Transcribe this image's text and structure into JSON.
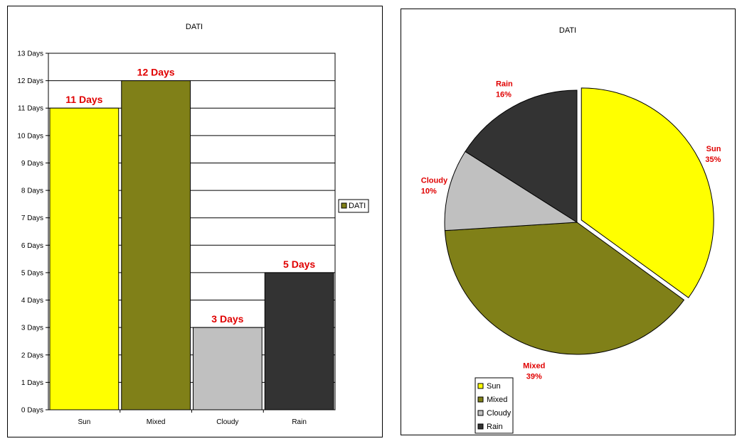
{
  "chart_data": [
    {
      "type": "bar",
      "title": "DATI",
      "categories": [
        "Sun",
        "Mixed",
        "Cloudy",
        "Rain"
      ],
      "series": [
        {
          "name": "DATI",
          "values": [
            11,
            12,
            3,
            5
          ]
        }
      ],
      "colors": [
        "#ffff00",
        "#808018",
        "#c0c0c0",
        "#333333"
      ],
      "legend_color": "#808018",
      "data_labels": [
        "11 Days",
        "12 Days",
        "3 Days",
        "5 Days"
      ],
      "yticks": [
        "0 Days",
        "1 Days",
        "2 Days",
        "3 Days",
        "4 Days",
        "5 Days",
        "6 Days",
        "7 Days",
        "8 Days",
        "9 Days",
        "10 Days",
        "11 Days",
        "12 Days",
        "13 Days"
      ],
      "ylim": [
        0,
        13
      ],
      "grid": true,
      "legend_position": "right"
    },
    {
      "type": "pie",
      "title": "DATI",
      "categories": [
        "Sun",
        "Mixed",
        "Cloudy",
        "Rain"
      ],
      "percentages": [
        35,
        39,
        10,
        16
      ],
      "percent_labels": [
        "35%",
        "39%",
        "10%",
        "16%"
      ],
      "colors": [
        "#ffff00",
        "#808018",
        "#c0c0c0",
        "#333333"
      ],
      "exploded": "Sun",
      "legend_position": "bottom-left"
    }
  ]
}
